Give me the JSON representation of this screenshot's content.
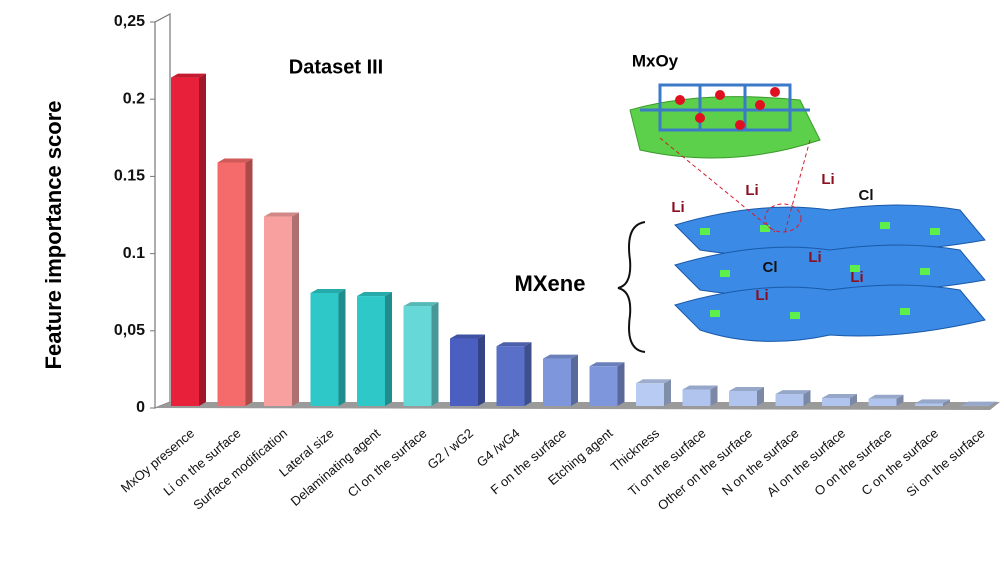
{
  "chart_data": {
    "type": "bar3d",
    "ylabel": "Feature importance score",
    "annotations": {
      "dataset": "Dataset III",
      "mxene": "MXene",
      "oxide": "MxOy",
      "inset_labels": [
        "Li",
        "Li",
        "Li",
        "Cl",
        "Cl",
        "Li",
        "Li",
        "Li"
      ]
    },
    "categories": [
      "MxOy presence",
      "Li on the surface",
      "Surface modification",
      "Lateral size",
      "Delaminating agent",
      "Cl on the surface",
      "G2 / wG2",
      "G4 /wG4",
      "F on the surface",
      "Etching agent",
      "Thickness",
      "Ti on the surface",
      "Other on the surface",
      "N on the surface",
      "Al on the surface",
      "O on the surface",
      "C on the surface",
      "Si on the surface"
    ],
    "values": [
      0.214,
      0.159,
      0.124,
      0.0745,
      0.0725,
      0.066,
      0.045,
      0.04,
      0.032,
      0.027,
      0.016,
      0.012,
      0.011,
      0.009,
      0.0065,
      0.006,
      0.003,
      0.0015
    ],
    "colors": [
      "#e8203a",
      "#f56a6a",
      "#f8a0a0",
      "#2ec8c8",
      "#2ec8c8",
      "#66d8d8",
      "#4a5fc0",
      "#5a70c8",
      "#7e96dc",
      "#7e96dc",
      "#b8cbf2",
      "#b0c4ee",
      "#b0c4ee",
      "#b0c4ee",
      "#b0c4ee",
      "#b0c4ee",
      "#b0c4ee",
      "#b0c4ee"
    ],
    "ylim": [
      0,
      0.25
    ],
    "yticks": [
      0,
      {
        "value": 0.05,
        "label": "0,05"
      },
      0.1,
      0.15,
      0.2,
      {
        "value": 0.25,
        "label": "0,25"
      }
    ]
  }
}
